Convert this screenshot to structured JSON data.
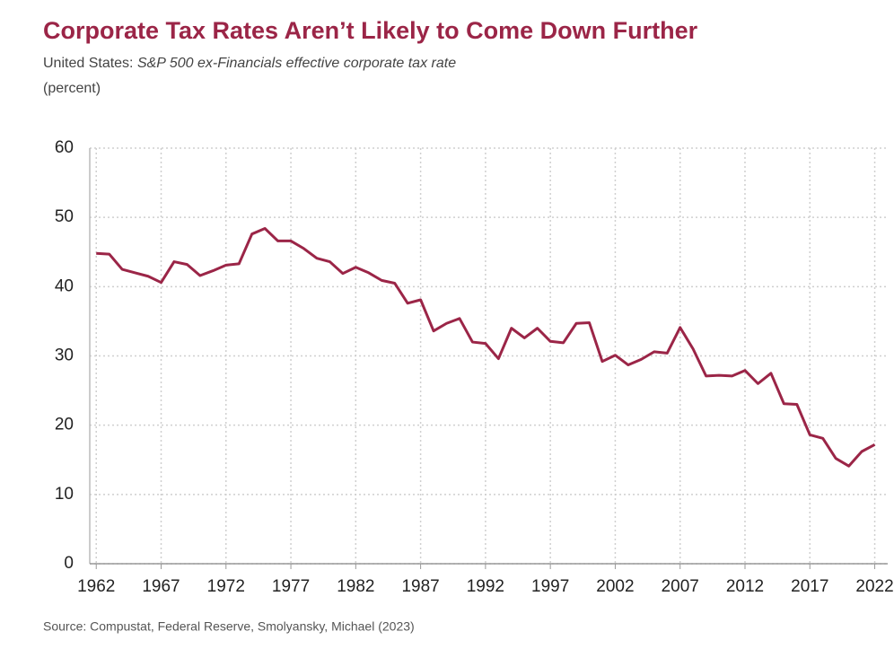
{
  "chart_data": {
    "type": "line",
    "title": "Corporate Tax Rates Aren’t Likely to Come Down Further",
    "subtitle": [
      "United States:",
      "S&P 500 ex-Financials effective corporate tax rate"
    ],
    "y_label": "(percent)",
    "source": "Source: Compustat, Federal Reserve, Smolyansky, Michael (2023)",
    "x": [
      1962,
      1963,
      1964,
      1965,
      1966,
      1967,
      1968,
      1969,
      1970,
      1971,
      1972,
      1973,
      1974,
      1975,
      1976,
      1977,
      1978,
      1979,
      1980,
      1981,
      1982,
      1983,
      1984,
      1985,
      1986,
      1987,
      1988,
      1989,
      1990,
      1991,
      1992,
      1993,
      1994,
      1995,
      1996,
      1997,
      1998,
      1999,
      2000,
      2001,
      2002,
      2003,
      2004,
      2005,
      2006,
      2007,
      2008,
      2009,
      2010,
      2011,
      2012,
      2013,
      2014,
      2015,
      2016,
      2017,
      2018,
      2019,
      2020,
      2021,
      2022
    ],
    "series": [
      {
        "color": "#9b2547",
        "values": [
          44.8,
          44.7,
          42.5,
          42,
          41.5,
          40.6,
          43.6,
          43.2,
          41.6,
          42.3,
          43.1,
          43.3,
          47.6,
          48.4,
          46.6,
          46.6,
          45.5,
          44.1,
          43.6,
          41.9,
          42.8,
          42,
          40.9,
          40.5,
          37.6,
          38.1,
          33.6,
          34.7,
          35.4,
          32,
          31.8,
          29.6,
          34,
          32.6,
          34,
          32.1,
          31.9,
          34.7,
          34.8,
          29.2,
          30.1,
          28.7,
          29.5,
          30.6,
          30.4,
          34.1,
          31,
          27.1,
          27.2,
          27.1,
          27.9,
          26,
          27.5,
          23.1,
          23,
          18.6,
          18.1,
          15.2,
          14.1,
          16.2,
          17.2
        ]
      }
    ],
    "xlim": [
      1961.5,
      2023
    ],
    "xticks": [
      1962,
      1967,
      1972,
      1977,
      1982,
      1987,
      1992,
      1997,
      2002,
      2007,
      2012,
      2017,
      2022
    ],
    "ylim": [
      0,
      60
    ],
    "yticks": [
      0,
      10,
      20,
      30,
      40,
      50,
      60
    ],
    "grid": true
  }
}
